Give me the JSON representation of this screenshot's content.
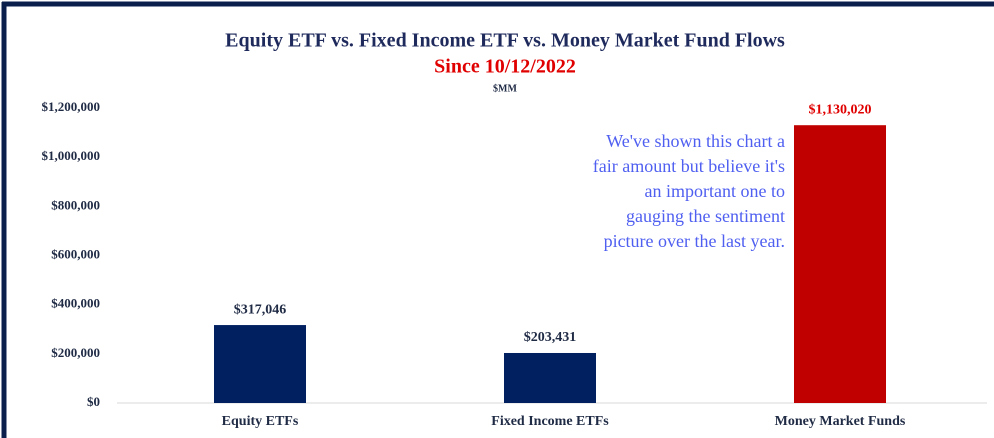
{
  "chart_data": {
    "type": "bar",
    "title": "Equity ETF vs. Fixed Income ETF vs. Money Market Fund Flows",
    "subtitle": "Since 10/12/2022",
    "unit_label": "$MM",
    "categories": [
      "Equity ETFs",
      "Fixed Income ETFs",
      "Money Market Funds"
    ],
    "values": [
      317046,
      203431,
      1130020
    ],
    "value_labels": [
      "$317,046",
      "$203,431",
      "$1,130,020"
    ],
    "colors": [
      "#002060",
      "#002060",
      "#c00000"
    ],
    "ylim": [
      0,
      1200000
    ],
    "yticks": [
      {
        "value": 0,
        "label": "$0"
      },
      {
        "value": 200000,
        "label": "$200,000"
      },
      {
        "value": 400000,
        "label": "$400,000"
      },
      {
        "value": 600000,
        "label": "$600,000"
      },
      {
        "value": 800000,
        "label": "$800,000"
      },
      {
        "value": 1000000,
        "label": "$1,000,000"
      },
      {
        "value": 1200000,
        "label": "$1,200,000"
      }
    ],
    "grid": false,
    "annotation": [
      "We've shown this chart a",
      "fair amount but believe it's",
      "an important one to",
      "gauging the sentiment",
      "picture over the last year."
    ]
  }
}
